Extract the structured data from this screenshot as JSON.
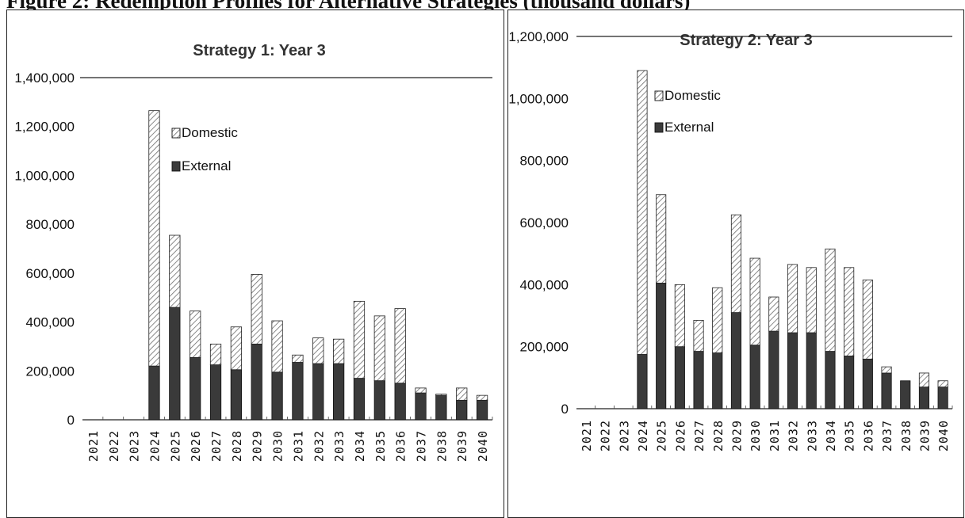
{
  "caption": "Figure 2: Redemption Profiles for Alternative Strategies (thousand dollars)",
  "colors": {
    "external": "#3a3a3a",
    "domestic_hatch": "#6b6b6b",
    "axis": "#222222"
  },
  "chart_data": [
    {
      "type": "bar",
      "stacked": true,
      "title": "Strategy 1: Year 3",
      "legend_position": "upper-left",
      "ylim": [
        0,
        1400000
      ],
      "yticks": [
        "0",
        "200,000",
        "400,000",
        "600,000",
        "800,000",
        "1,000,000",
        "1,200,000",
        "1,400,000"
      ],
      "categories": [
        "2021",
        "2022",
        "2023",
        "2024",
        "2025",
        "2026",
        "2027",
        "2028",
        "2029",
        "2030",
        "2031",
        "2032",
        "2033",
        "2034",
        "2035",
        "2036",
        "2037",
        "2038",
        "2039",
        "2040"
      ],
      "series": [
        {
          "name": "External",
          "values": [
            0,
            0,
            0,
            220000,
            460000,
            255000,
            225000,
            205000,
            310000,
            195000,
            235000,
            230000,
            230000,
            170000,
            160000,
            150000,
            110000,
            100000,
            80000,
            80000
          ]
        },
        {
          "name": "Domestic",
          "values": [
            0,
            0,
            0,
            1045000,
            295000,
            190000,
            85000,
            175000,
            285000,
            210000,
            30000,
            105000,
            100000,
            315000,
            265000,
            305000,
            20000,
            5000,
            50000,
            20000
          ]
        }
      ]
    },
    {
      "type": "bar",
      "stacked": true,
      "title": "Strategy 2: Year 3",
      "legend_position": "upper-left",
      "ylim": [
        0,
        1200000
      ],
      "yticks": [
        "0",
        "200,000",
        "400,000",
        "600,000",
        "800,000",
        "1,000,000",
        "1,200,000"
      ],
      "categories": [
        "2021",
        "2022",
        "2023",
        "2024",
        "2025",
        "2026",
        "2027",
        "2028",
        "2029",
        "2030",
        "2031",
        "2032",
        "2033",
        "2034",
        "2035",
        "2036",
        "2037",
        "2038",
        "2039",
        "2040"
      ],
      "series": [
        {
          "name": "External",
          "values": [
            0,
            0,
            0,
            175000,
            405000,
            200000,
            185000,
            180000,
            310000,
            205000,
            250000,
            245000,
            245000,
            185000,
            170000,
            160000,
            115000,
            90000,
            70000,
            70000
          ]
        },
        {
          "name": "Domestic",
          "values": [
            0,
            0,
            0,
            915000,
            285000,
            200000,
            100000,
            210000,
            315000,
            280000,
            110000,
            220000,
            210000,
            330000,
            285000,
            255000,
            20000,
            0,
            45000,
            20000
          ]
        }
      ]
    }
  ]
}
